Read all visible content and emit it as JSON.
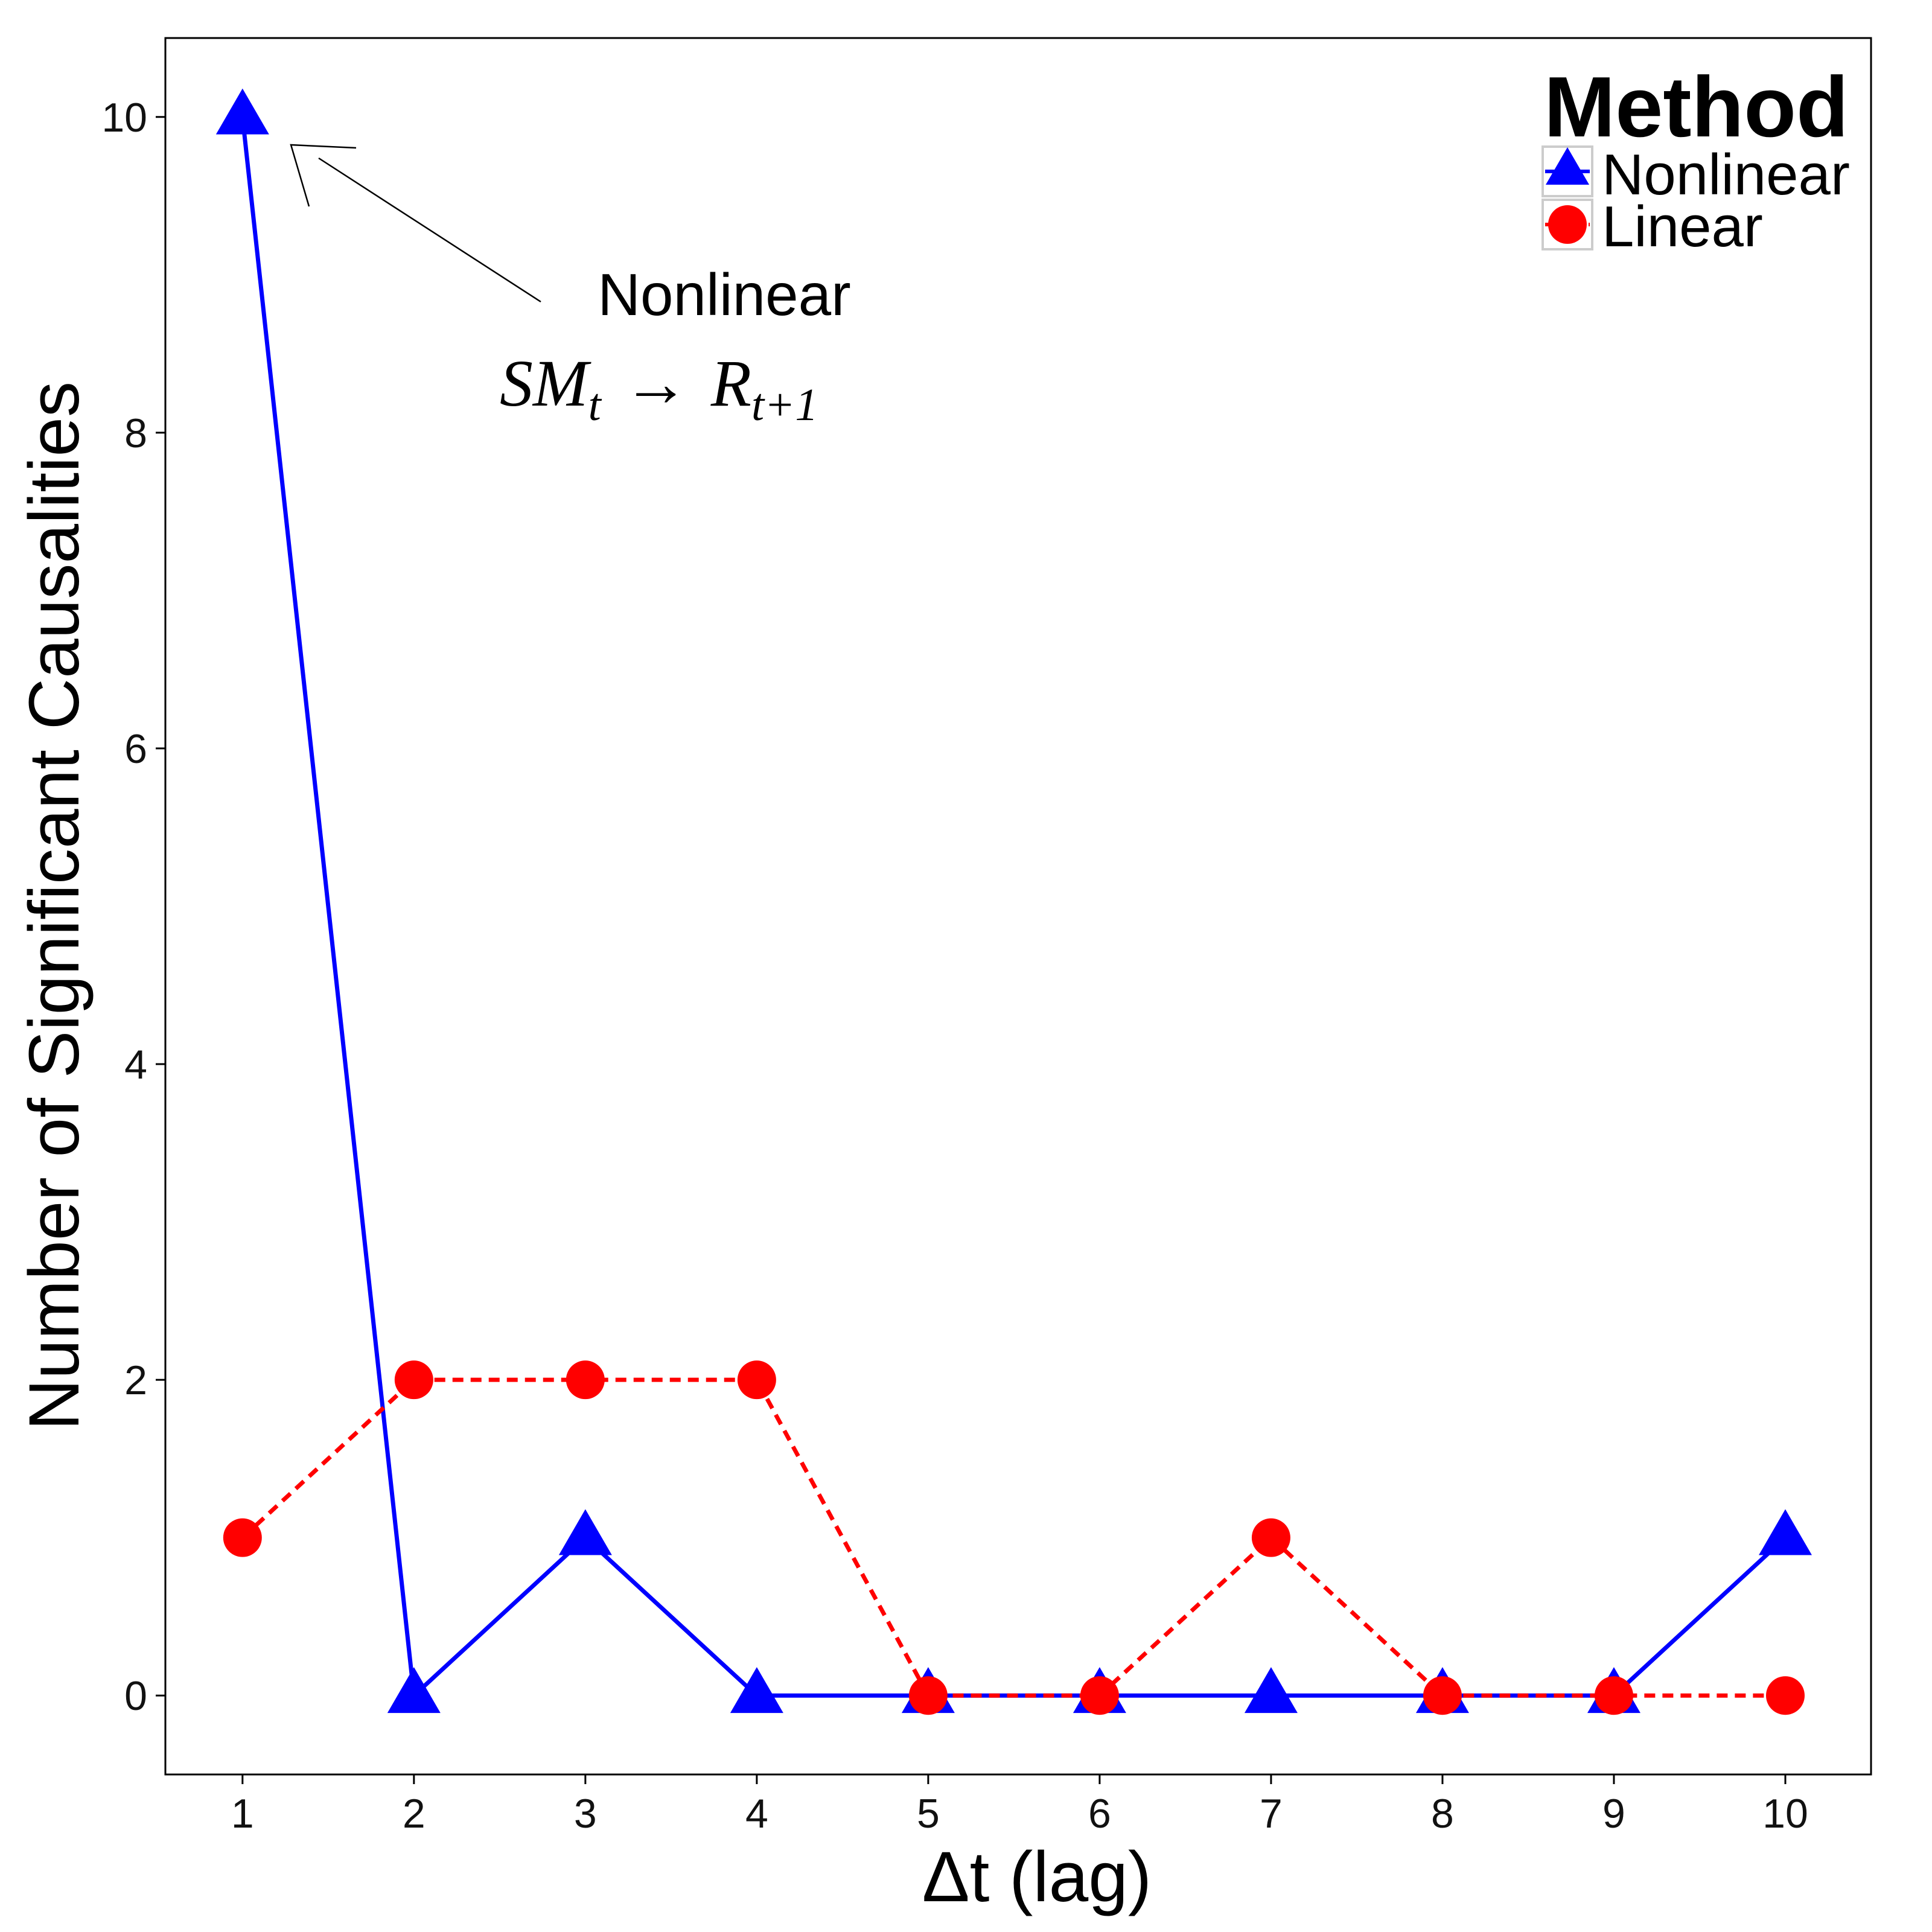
{
  "chart_data": {
    "type": "line",
    "title": "",
    "xlabel": "Δt (lag)",
    "ylabel": "Number of Significant Causalities",
    "x": [
      1,
      2,
      3,
      4,
      5,
      6,
      7,
      8,
      9,
      10
    ],
    "xticks": [
      "1",
      "2",
      "3",
      "4",
      "5",
      "6",
      "7",
      "8",
      "9",
      "10"
    ],
    "yticks": [
      "0",
      "2",
      "4",
      "6",
      "8",
      "10"
    ],
    "xlim": [
      0.55,
      10.5
    ],
    "ylim": [
      -0.5,
      10.5
    ],
    "grid": false,
    "legend": {
      "title": "Method",
      "position": "top-right",
      "entries": [
        "Nonlinear",
        "Linear"
      ]
    },
    "series": [
      {
        "name": "Nonlinear",
        "color": "#0000ff",
        "marker": "triangle",
        "linestyle": "solid",
        "values": [
          10,
          0,
          1,
          0,
          0,
          0,
          0,
          0,
          0,
          1
        ]
      },
      {
        "name": "Linear",
        "color": "#ff0000",
        "marker": "circle",
        "linestyle": "dashed",
        "values": [
          1,
          2,
          2,
          2,
          0,
          0,
          1,
          0,
          0,
          0
        ]
      }
    ],
    "annotation": {
      "label": "Nonlinear",
      "formula_base_1": "SM",
      "formula_sub_1": "t",
      "formula_arrow": "→",
      "formula_base_2": "R",
      "formula_sub_2": "t+1",
      "points_to": {
        "x": 1,
        "y": 10
      }
    }
  }
}
